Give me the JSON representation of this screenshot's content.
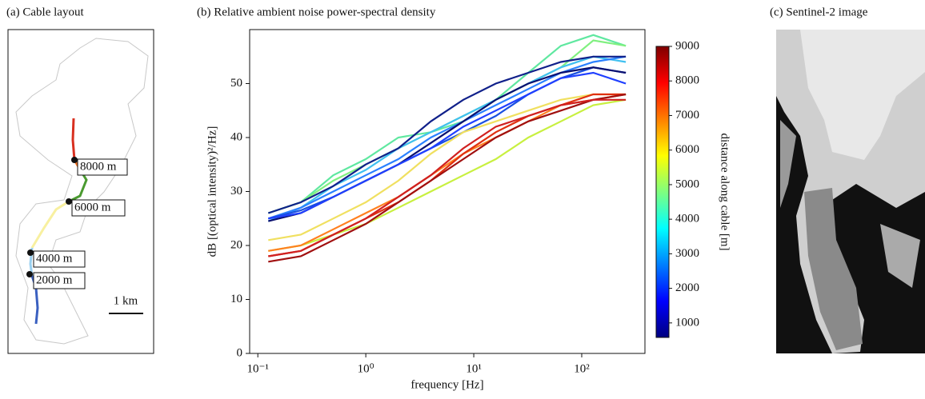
{
  "layout_panel": {
    "title": "(a) Cable layout",
    "labels": [
      "8000 m",
      "6000 m",
      "4000 m",
      "2000 m"
    ],
    "scale_bar": "1 km"
  },
  "image_panel": {
    "title": "(c) Sentinel-2 image"
  },
  "chart_data": [
    {
      "type": "line",
      "title": "(b) Relative ambient noise power-spectral density",
      "xlabel": "frequency [Hz]",
      "ylabel": "dB [(optical intensity)²/Hz]",
      "xscale": "log",
      "x": [
        0.125,
        0.25,
        0.5,
        1,
        2,
        4,
        8,
        16,
        32,
        64,
        128,
        256
      ],
      "xlim": [
        0.084,
        385
      ],
      "xticks": [
        {
          "value": 0.1,
          "label": "10⁻¹"
        },
        {
          "value": 1,
          "label": "10⁰"
        },
        {
          "value": 10,
          "label": "10¹"
        },
        {
          "value": 100,
          "label": "10²"
        }
      ],
      "ylim": [
        0,
        60
      ],
      "yticks": [
        0,
        10,
        20,
        30,
        40,
        50
      ],
      "series": [
        {
          "color": "#5fe8a0",
          "values": [
            26,
            28,
            33,
            36,
            40,
            41,
            43,
            47,
            52,
            57,
            59,
            57
          ]
        },
        {
          "color": "#80f080",
          "values": [
            26,
            28,
            32,
            35,
            38,
            41,
            44,
            47,
            50,
            53,
            58,
            57
          ]
        },
        {
          "color": "#40c0f0",
          "values": [
            24.5,
            27,
            31,
            34,
            38,
            41,
            44,
            47,
            50,
            53,
            55,
            54
          ]
        },
        {
          "color": "#2a80ff",
          "values": [
            25,
            27,
            30,
            33,
            36,
            40,
            43,
            46,
            49,
            52,
            54,
            55
          ]
        },
        {
          "color": "#1a50e0",
          "values": [
            25,
            26.5,
            29,
            32,
            35,
            38,
            41,
            44,
            48,
            51,
            53,
            52
          ]
        },
        {
          "color": "#10208a",
          "values": [
            26,
            28,
            31,
            35,
            38,
            43,
            47,
            50,
            52,
            54,
            55,
            55
          ]
        },
        {
          "color": "#0a1070",
          "values": [
            24.5,
            26,
            29,
            32,
            35,
            39,
            43,
            47,
            50,
            52,
            53,
            52
          ]
        },
        {
          "color": "#2040ff",
          "values": [
            25,
            26,
            29,
            32,
            35,
            38,
            42,
            45,
            48,
            51,
            52,
            50
          ]
        },
        {
          "color": "#f0e060",
          "values": [
            21,
            22,
            25,
            28,
            32,
            37,
            41,
            43,
            45,
            47,
            48,
            48
          ]
        },
        {
          "color": "#c8f040",
          "values": [
            19,
            20,
            22,
            24,
            27,
            30,
            33,
            36,
            40,
            43,
            46,
            47
          ]
        },
        {
          "color": "#ff8020",
          "values": [
            19,
            20,
            23,
            26,
            29,
            33,
            37,
            40,
            43,
            46,
            47,
            48
          ]
        },
        {
          "color": "#e03010",
          "values": [
            18,
            19,
            22,
            25,
            28,
            32,
            37,
            41,
            44,
            46,
            48,
            48
          ]
        },
        {
          "color": "#a01010",
          "values": [
            17,
            18,
            21,
            24,
            28,
            32,
            36,
            40,
            43,
            45,
            47,
            48
          ]
        },
        {
          "color": "#d02020",
          "values": [
            18,
            19,
            22,
            25,
            29,
            33,
            38,
            42,
            44,
            46,
            47,
            47
          ]
        }
      ],
      "colorbar": {
        "label": "distance along cable [m]",
        "lim": [
          580,
          9000
        ],
        "ticks": [
          1000,
          2000,
          3000,
          4000,
          5000,
          6000,
          7000,
          8000,
          9000
        ],
        "colors": [
          "#00007f",
          "#0000ff",
          "#007fff",
          "#00ffff",
          "#7fff7f",
          "#ffff00",
          "#ff7f00",
          "#ff0000",
          "#7f0000"
        ]
      }
    }
  ]
}
